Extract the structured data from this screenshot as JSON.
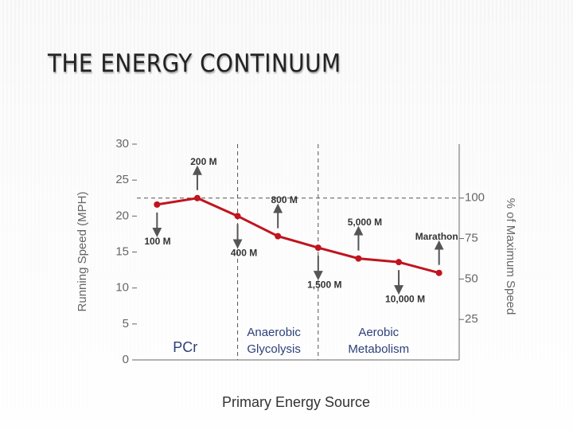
{
  "slide": {
    "title": "THE ENERGY CONTINUUM"
  },
  "chart_data": {
    "type": "line",
    "categories": [
      "100 M",
      "200 M",
      "400 M",
      "800 M",
      "1,500 M",
      "5,000 M",
      "10,000 M",
      "Marathon"
    ],
    "series": [
      {
        "color": "#c0141e",
        "values": [
          21.6,
          22.5,
          20.0,
          17.2,
          15.6,
          14.1,
          13.6,
          12.1
        ]
      }
    ],
    "ylim": [
      0,
      30
    ],
    "yticks": [
      0,
      5,
      10,
      15,
      20,
      25,
      30
    ],
    "y2lim": [
      0,
      133.33
    ],
    "y2ticks": [
      25,
      50,
      75,
      100
    ],
    "y_label": "Running Speed (MPH)",
    "y2_label": "% of Maximum Speed",
    "x_label": "Primary Energy Source",
    "regions": [
      [
        "PCr"
      ],
      [
        "Anaerobic",
        "Glycolysis"
      ],
      [
        "Aerobic",
        "Metabolism"
      ]
    ]
  }
}
